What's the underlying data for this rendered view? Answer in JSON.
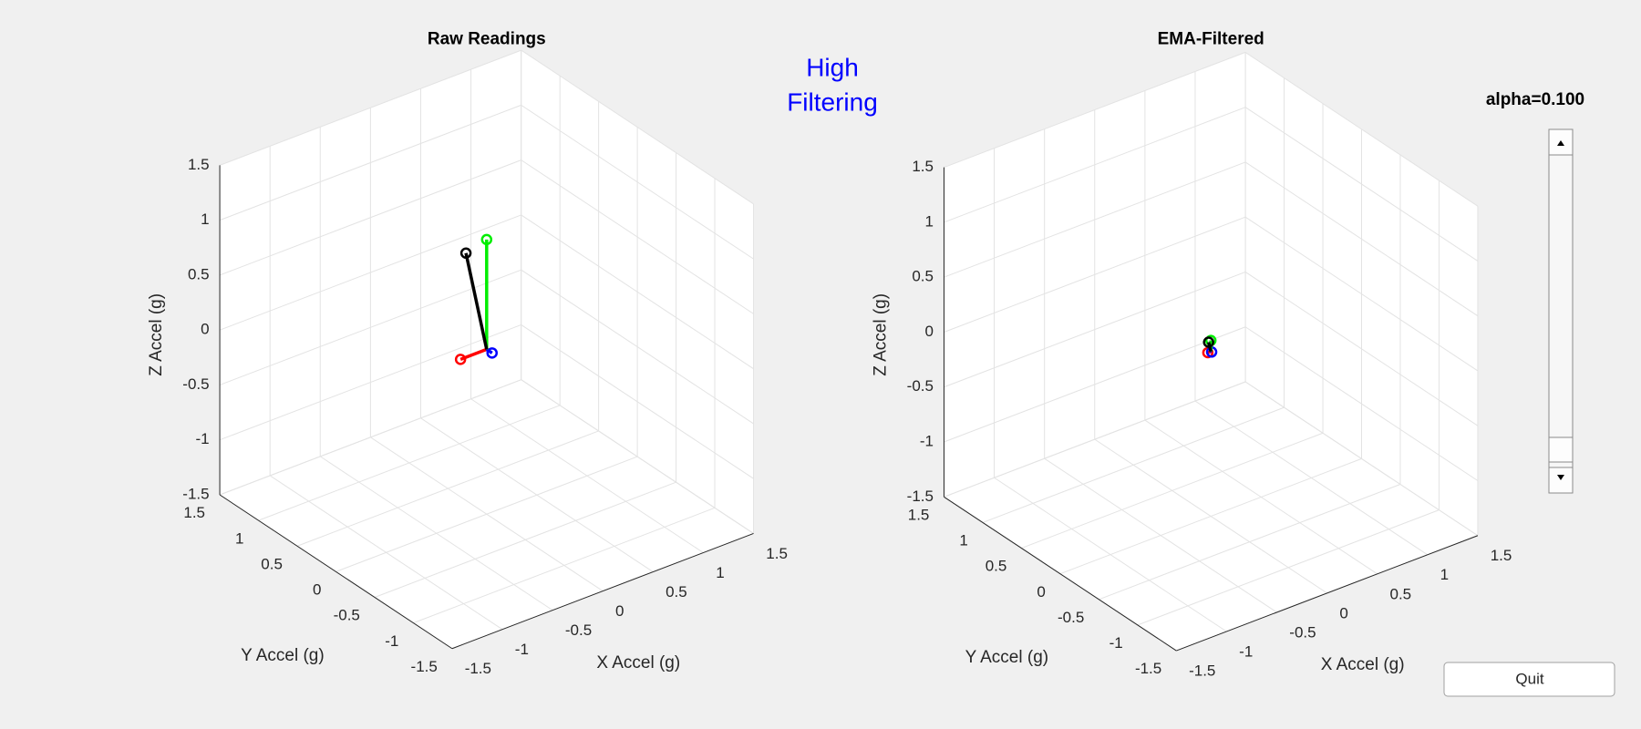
{
  "plots": [
    {
      "title": "Raw Readings",
      "xlabel": "X Accel (g)",
      "ylabel": "Y Accel (g)",
      "zlabel": "Z Accel (g)",
      "xlim": [
        -1.5,
        1.5
      ],
      "ylim": [
        -1.5,
        1.5
      ],
      "zlim": [
        -1.5,
        1.5
      ],
      "xticks": [
        -1.5,
        -1,
        -0.5,
        0,
        0.5,
        1,
        1.5
      ],
      "yticks": [
        -1.5,
        -1,
        -0.5,
        0,
        0.5,
        1,
        1.5
      ],
      "zticks": [
        -1.5,
        -1,
        -0.5,
        0,
        0.5,
        1,
        1.5
      ],
      "vector": {
        "x": -0.26,
        "y": -0.07,
        "z": 1.0
      },
      "colors": {
        "x": "#ff0000",
        "y": "#0000ff",
        "z": "#00ee00",
        "total": "#000000"
      }
    },
    {
      "title": "EMA-Filtered",
      "xlabel": "X Accel (g)",
      "ylabel": "Y Accel (g)",
      "zlabel": "Z Accel (g)",
      "xlim": [
        -1.5,
        1.5
      ],
      "ylim": [
        -1.5,
        1.5
      ],
      "zlim": [
        -1.5,
        1.5
      ],
      "xticks": [
        -1.5,
        -1,
        -0.5,
        0,
        0.5,
        1,
        1.5
      ],
      "yticks": [
        -1.5,
        -1,
        -0.5,
        0,
        0.5,
        1,
        1.5
      ],
      "zticks": [
        -1.5,
        -1,
        -0.5,
        0,
        0.5,
        1,
        1.5
      ],
      "vector": {
        "x": -0.03,
        "y": -0.01,
        "z": 0.1
      },
      "colors": {
        "x": "#ff0000",
        "y": "#0000ff",
        "z": "#00ee00",
        "total": "#000000"
      }
    }
  ],
  "status": [
    "High",
    "Filtering"
  ],
  "slider": {
    "label": "alpha=0.100"
  },
  "button": {
    "label": "Quit"
  }
}
